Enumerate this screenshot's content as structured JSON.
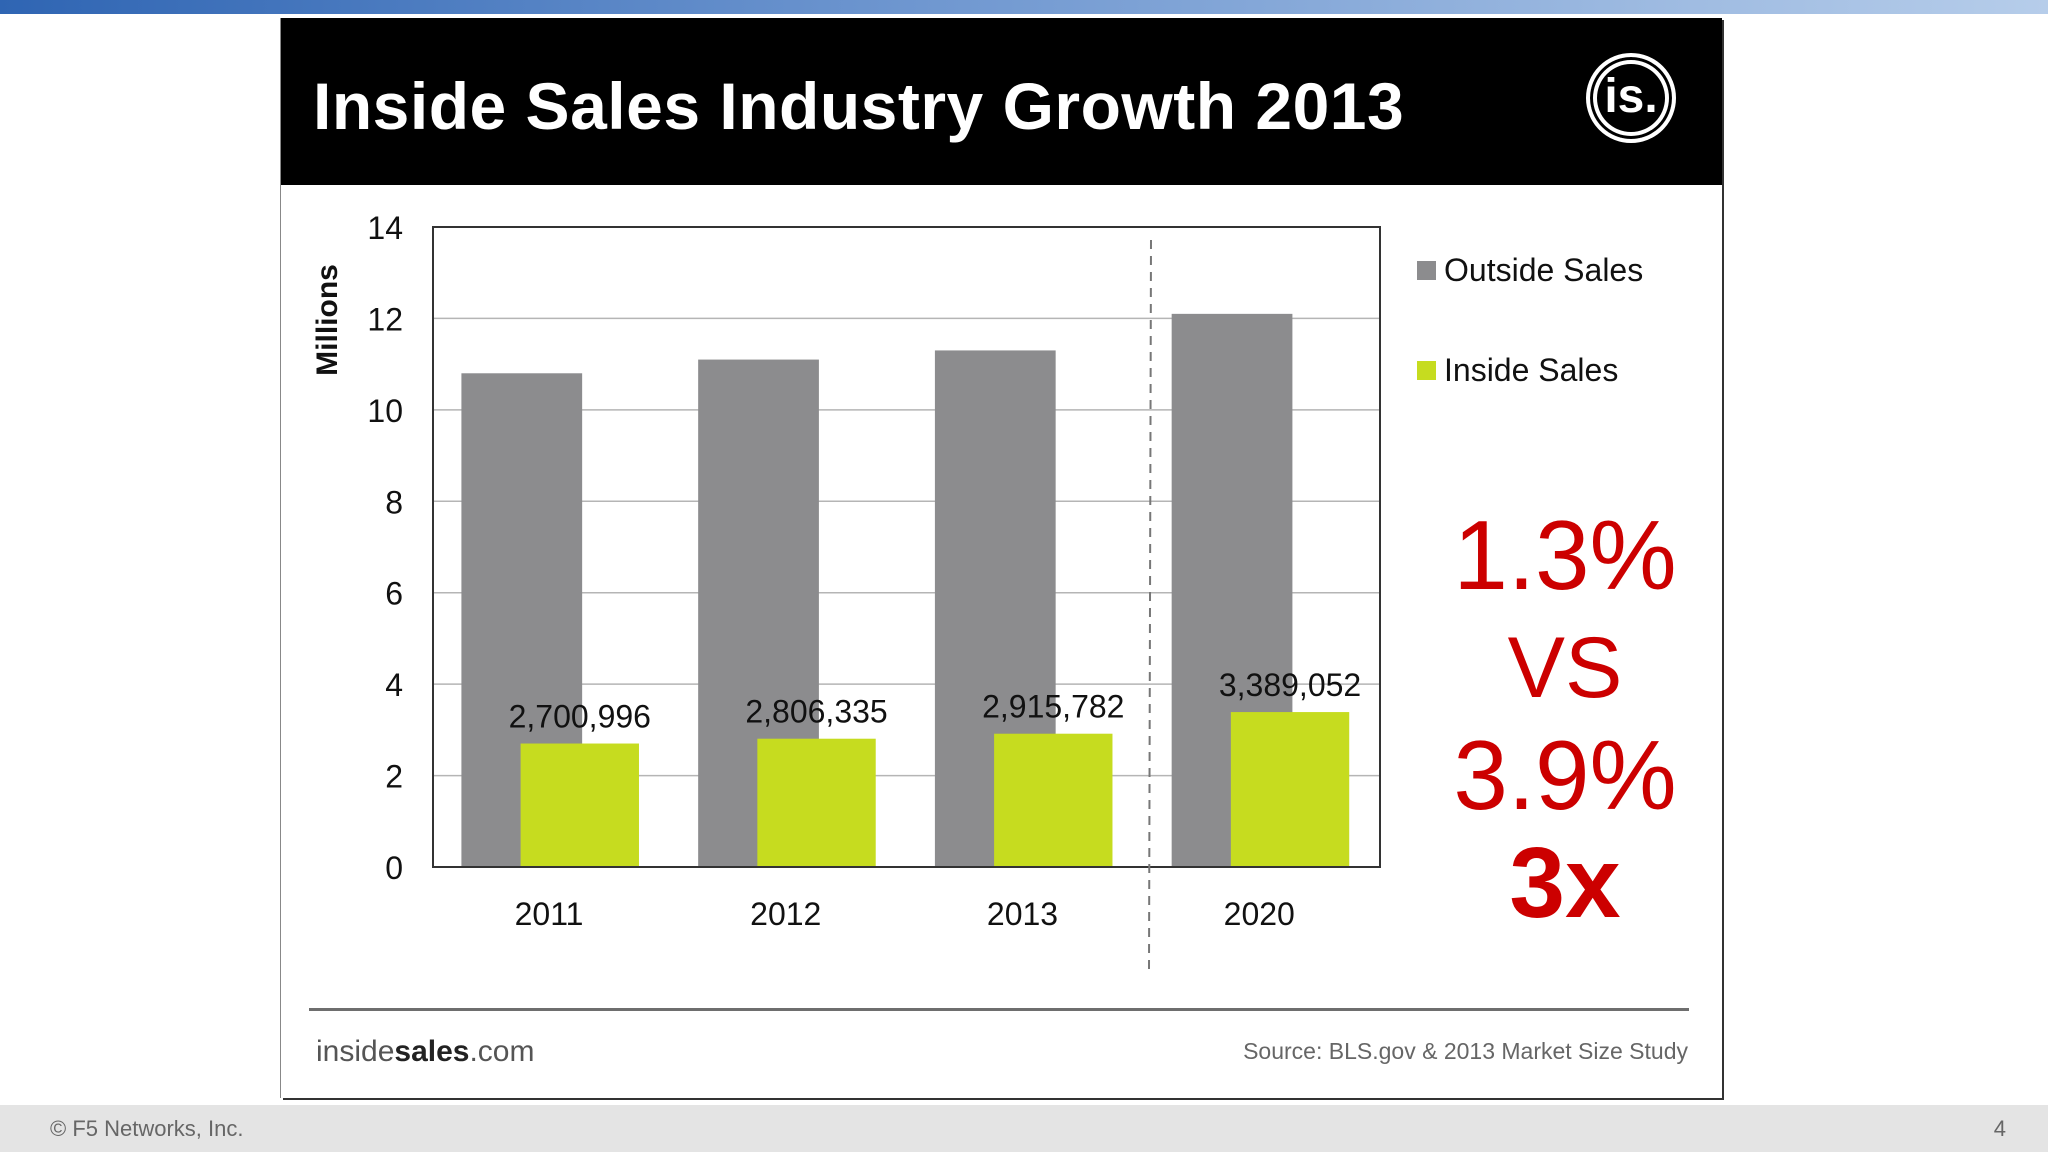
{
  "slide": {
    "title": "Inside Sales Industry Growth 2013",
    "logo_text": "is.",
    "brand_prefix": "inside",
    "brand_bold": "sales",
    "brand_suffix": ".com",
    "source": "Source: BLS.gov & 2013 Market Size Study"
  },
  "footer": {
    "copyright": "© F5 Networks, Inc.",
    "page_number": "4"
  },
  "colors": {
    "outside_sales": "#8c8c8e",
    "inside_sales": "#c6dc1f",
    "callout_red": "#cc0000",
    "header_black": "#000000"
  },
  "chart_data": {
    "type": "bar",
    "categories": [
      "2011",
      "2012",
      "2013",
      "2020"
    ],
    "series": [
      {
        "name": "Outside Sales",
        "values": [
          10.8,
          11.1,
          11.3,
          12.1
        ]
      },
      {
        "name": "Inside Sales",
        "values": [
          2.700996,
          2.806335,
          2.915782,
          3.389052
        ],
        "data_labels": [
          "2,700,996",
          "2,806,335",
          "2,915,782",
          "3,389,052"
        ]
      }
    ],
    "ylabel": "Millions",
    "ylim": [
      0,
      14
    ],
    "yticks": [
      0,
      2,
      4,
      6,
      8,
      10,
      12,
      14
    ],
    "grid": true,
    "legend": "right",
    "projection_divider_after": "2013",
    "callouts": [
      "1.3%",
      "VS",
      "3.9%",
      "3x"
    ]
  }
}
